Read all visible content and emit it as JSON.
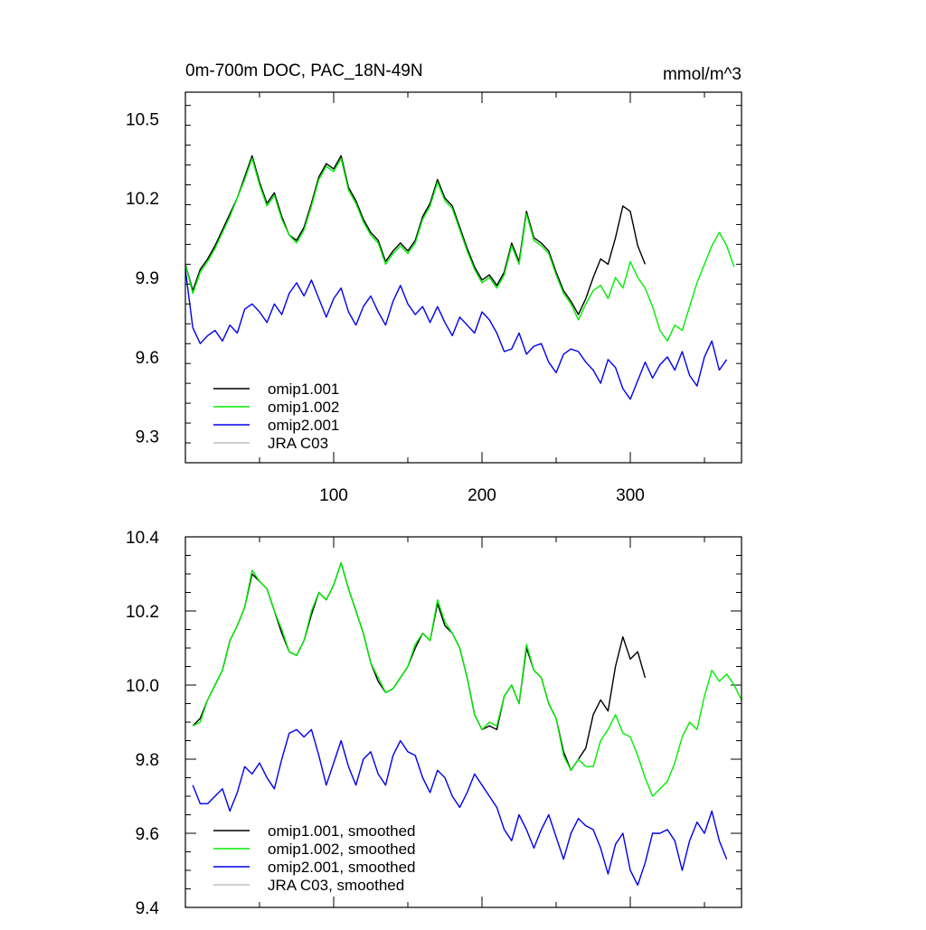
{
  "chart_data": [
    {
      "type": "line",
      "title": "0m-700m DOC, PAC_18N-49N",
      "units": "mmol/m^3",
      "xlabel": "",
      "ylabel": "",
      "xlim": [
        0,
        375
      ],
      "ylim": [
        9.2,
        10.6
      ],
      "x_ticks": [
        100,
        200,
        300
      ],
      "x_tick_labels": [
        "100",
        "200",
        "300"
      ],
      "y_ticks": [
        9.3,
        9.6,
        9.9,
        10.2,
        10.5
      ],
      "y_tick_labels": [
        "9.3",
        "9.6",
        "9.9",
        "10.2",
        "10.5"
      ],
      "legend_placement": "bottom-left",
      "series": [
        {
          "name": "omip1.001",
          "color": "#000000",
          "x": [
            0,
            5,
            10,
            15,
            20,
            25,
            30,
            35,
            40,
            45,
            50,
            55,
            60,
            65,
            70,
            75,
            80,
            85,
            90,
            95,
            100,
            105,
            110,
            115,
            120,
            125,
            130,
            135,
            140,
            145,
            150,
            155,
            160,
            165,
            170,
            175,
            180,
            185,
            190,
            195,
            200,
            205,
            210,
            215,
            220,
            225,
            230,
            235,
            240,
            245,
            250,
            255,
            260,
            265,
            270,
            275,
            280,
            285,
            290,
            295,
            300,
            305,
            310
          ],
          "values": [
            9.95,
            9.85,
            9.93,
            9.97,
            10.02,
            10.08,
            10.14,
            10.2,
            10.28,
            10.36,
            10.26,
            10.18,
            10.22,
            10.13,
            10.06,
            10.04,
            10.09,
            10.18,
            10.28,
            10.33,
            10.31,
            10.36,
            10.24,
            10.19,
            10.12,
            10.07,
            10.04,
            9.96,
            10.0,
            10.03,
            10.0,
            10.04,
            10.13,
            10.18,
            10.27,
            10.2,
            10.17,
            10.09,
            10.01,
            9.94,
            9.89,
            9.91,
            9.87,
            9.92,
            10.03,
            9.96,
            10.15,
            10.05,
            10.03,
            10.0,
            9.92,
            9.85,
            9.81,
            9.76,
            9.82,
            9.9,
            9.97,
            9.95,
            10.05,
            10.17,
            10.15,
            10.02,
            9.95
          ]
        },
        {
          "name": "omip1.002",
          "color": "#00ee00",
          "x": [
            0,
            5,
            10,
            15,
            20,
            25,
            30,
            35,
            40,
            45,
            50,
            55,
            60,
            65,
            70,
            75,
            80,
            85,
            90,
            95,
            100,
            105,
            110,
            115,
            120,
            125,
            130,
            135,
            140,
            145,
            150,
            155,
            160,
            165,
            170,
            175,
            180,
            185,
            190,
            195,
            200,
            205,
            210,
            215,
            220,
            225,
            230,
            235,
            240,
            245,
            250,
            255,
            260,
            265,
            270,
            275,
            280,
            285,
            290,
            295,
            300,
            305,
            310,
            315,
            320,
            325,
            330,
            335,
            340,
            345,
            350,
            355,
            360,
            365,
            370
          ],
          "values": [
            9.95,
            9.84,
            9.92,
            9.96,
            10.01,
            10.07,
            10.13,
            10.2,
            10.27,
            10.35,
            10.25,
            10.17,
            10.21,
            10.12,
            10.06,
            10.03,
            10.08,
            10.17,
            10.27,
            10.32,
            10.3,
            10.35,
            10.23,
            10.18,
            10.11,
            10.06,
            10.03,
            9.95,
            9.99,
            10.02,
            9.99,
            10.03,
            10.12,
            10.17,
            10.26,
            10.19,
            10.16,
            10.08,
            10.0,
            9.93,
            9.88,
            9.9,
            9.86,
            9.91,
            10.02,
            9.95,
            10.14,
            10.04,
            10.02,
            9.99,
            9.91,
            9.84,
            9.8,
            9.74,
            9.8,
            9.85,
            9.87,
            9.82,
            9.9,
            9.86,
            9.96,
            9.9,
            9.86,
            9.79,
            9.7,
            9.66,
            9.72,
            9.7,
            9.79,
            9.88,
            9.95,
            10.02,
            10.07,
            10.02,
            9.94
          ]
        },
        {
          "name": "omip2.001",
          "color": "#0000ee",
          "x": [
            0,
            5,
            10,
            15,
            20,
            25,
            30,
            35,
            40,
            45,
            50,
            55,
            60,
            65,
            70,
            75,
            80,
            85,
            90,
            95,
            100,
            105,
            110,
            115,
            120,
            125,
            130,
            135,
            140,
            145,
            150,
            155,
            160,
            165,
            170,
            175,
            180,
            185,
            190,
            195,
            200,
            205,
            210,
            215,
            220,
            225,
            230,
            235,
            240,
            245,
            250,
            255,
            260,
            265,
            270,
            275,
            280,
            285,
            290,
            295,
            300,
            305,
            310,
            315,
            320,
            325,
            330,
            335,
            340,
            345,
            350,
            355,
            360,
            365
          ],
          "values": [
            9.93,
            9.71,
            9.65,
            9.68,
            9.7,
            9.66,
            9.72,
            9.69,
            9.78,
            9.8,
            9.77,
            9.73,
            9.8,
            9.76,
            9.84,
            9.88,
            9.83,
            9.89,
            9.82,
            9.75,
            9.82,
            9.86,
            9.77,
            9.72,
            9.79,
            9.83,
            9.77,
            9.72,
            9.81,
            9.87,
            9.8,
            9.76,
            9.79,
            9.73,
            9.79,
            9.73,
            9.68,
            9.75,
            9.72,
            9.69,
            9.77,
            9.74,
            9.69,
            9.62,
            9.63,
            9.69,
            9.61,
            9.64,
            9.65,
            9.58,
            9.54,
            9.61,
            9.63,
            9.62,
            9.58,
            9.55,
            9.5,
            9.59,
            9.56,
            9.48,
            9.44,
            9.51,
            9.58,
            9.52,
            9.57,
            9.6,
            9.55,
            9.62,
            9.53,
            9.49,
            9.6,
            9.66,
            9.55,
            9.59
          ]
        },
        {
          "name": "JRA C03",
          "color": "#c0c0c0",
          "x": [],
          "values": []
        }
      ]
    },
    {
      "type": "line",
      "title": "",
      "xlabel": "",
      "ylabel": "",
      "xlim": [
        0,
        375
      ],
      "ylim": [
        9.4,
        10.4
      ],
      "x_ticks": [
        100,
        200,
        300
      ],
      "x_tick_labels": [],
      "y_ticks": [
        9.4,
        9.6,
        9.8,
        10.0,
        10.2,
        10.4
      ],
      "y_tick_labels": [
        "9.4",
        "9.6",
        "9.8",
        "10.0",
        "10.2",
        "10.4"
      ],
      "legend_placement": "bottom-left",
      "series": [
        {
          "name": "omip1.001, smoothed",
          "color": "#000000",
          "x": [
            5,
            10,
            15,
            20,
            25,
            30,
            35,
            40,
            45,
            50,
            55,
            60,
            65,
            70,
            75,
            80,
            85,
            90,
            95,
            100,
            105,
            110,
            115,
            120,
            125,
            130,
            135,
            140,
            145,
            150,
            155,
            160,
            165,
            170,
            175,
            180,
            185,
            190,
            195,
            200,
            205,
            210,
            215,
            220,
            225,
            230,
            235,
            240,
            245,
            250,
            255,
            260,
            265,
            270,
            275,
            280,
            285,
            290,
            295,
            300,
            305,
            310
          ],
          "values": [
            9.89,
            9.91,
            9.96,
            10.0,
            10.04,
            10.12,
            10.16,
            10.21,
            10.3,
            10.28,
            10.26,
            10.2,
            10.14,
            10.09,
            10.08,
            10.12,
            10.19,
            10.25,
            10.23,
            10.27,
            10.33,
            10.26,
            10.2,
            10.14,
            10.06,
            10.01,
            9.98,
            9.99,
            10.02,
            10.05,
            10.1,
            10.14,
            10.12,
            10.22,
            10.16,
            10.14,
            10.1,
            10.02,
            9.92,
            9.88,
            9.89,
            9.88,
            9.97,
            10.0,
            9.95,
            10.1,
            10.04,
            10.02,
            9.95,
            9.91,
            9.82,
            9.77,
            9.8,
            9.83,
            9.92,
            9.96,
            9.93,
            10.05,
            10.13,
            10.07,
            10.09,
            10.02
          ]
        },
        {
          "name": "omip1.002, smoothed",
          "color": "#00ee00",
          "x": [
            5,
            10,
            15,
            20,
            25,
            30,
            35,
            40,
            45,
            50,
            55,
            60,
            65,
            70,
            75,
            80,
            85,
            90,
            95,
            100,
            105,
            110,
            115,
            120,
            125,
            130,
            135,
            140,
            145,
            150,
            155,
            160,
            165,
            170,
            175,
            180,
            185,
            190,
            195,
            200,
            205,
            210,
            215,
            220,
            225,
            230,
            235,
            240,
            245,
            250,
            255,
            260,
            265,
            270,
            275,
            280,
            285,
            290,
            295,
            300,
            305,
            310,
            315,
            320,
            325,
            330,
            335,
            340,
            345,
            350,
            355,
            360,
            365,
            370,
            375
          ],
          "values": [
            9.89,
            9.9,
            9.96,
            10.0,
            10.04,
            10.12,
            10.16,
            10.21,
            10.31,
            10.28,
            10.26,
            10.2,
            10.15,
            10.09,
            10.08,
            10.12,
            10.2,
            10.25,
            10.23,
            10.27,
            10.33,
            10.26,
            10.2,
            10.14,
            10.06,
            10.02,
            9.98,
            9.99,
            10.02,
            10.05,
            10.11,
            10.14,
            10.12,
            10.23,
            10.17,
            10.14,
            10.1,
            10.02,
            9.92,
            9.88,
            9.9,
            9.89,
            9.97,
            10.0,
            9.95,
            10.11,
            10.04,
            10.02,
            9.95,
            9.91,
            9.81,
            9.77,
            9.8,
            9.78,
            9.78,
            9.85,
            9.88,
            9.92,
            9.87,
            9.86,
            9.81,
            9.75,
            9.7,
            9.72,
            9.74,
            9.79,
            9.86,
            9.9,
            9.88,
            9.97,
            10.04,
            10.01,
            10.03,
            10.0,
            9.96
          ]
        },
        {
          "name": "omip2.001, smoothed",
          "color": "#0000ee",
          "x": [
            5,
            10,
            15,
            20,
            25,
            30,
            35,
            40,
            45,
            50,
            55,
            60,
            65,
            70,
            75,
            80,
            85,
            90,
            95,
            100,
            105,
            110,
            115,
            120,
            125,
            130,
            135,
            140,
            145,
            150,
            155,
            160,
            165,
            170,
            175,
            180,
            185,
            190,
            195,
            200,
            205,
            210,
            215,
            220,
            225,
            230,
            235,
            240,
            245,
            250,
            255,
            260,
            265,
            270,
            275,
            280,
            285,
            290,
            295,
            300,
            305,
            310,
            315,
            320,
            325,
            330,
            335,
            340,
            345,
            350,
            355,
            360,
            365
          ],
          "values": [
            9.73,
            9.68,
            9.68,
            9.7,
            9.72,
            9.66,
            9.71,
            9.78,
            9.76,
            9.79,
            9.75,
            9.72,
            9.8,
            9.87,
            9.88,
            9.86,
            9.88,
            9.81,
            9.73,
            9.79,
            9.85,
            9.78,
            9.73,
            9.8,
            9.82,
            9.76,
            9.73,
            9.81,
            9.85,
            9.82,
            9.81,
            9.75,
            9.71,
            9.77,
            9.75,
            9.7,
            9.67,
            9.71,
            9.76,
            9.73,
            9.7,
            9.67,
            9.61,
            9.58,
            9.65,
            9.61,
            9.56,
            9.61,
            9.65,
            9.59,
            9.53,
            9.6,
            9.64,
            9.62,
            9.61,
            9.56,
            9.49,
            9.57,
            9.6,
            9.5,
            9.46,
            9.52,
            9.6,
            9.6,
            9.61,
            9.58,
            9.5,
            9.58,
            9.63,
            9.6,
            9.66,
            9.58,
            9.53
          ]
        },
        {
          "name": "JRA C03, smoothed",
          "color": "#c0c0c0",
          "x": [],
          "values": []
        }
      ]
    }
  ]
}
